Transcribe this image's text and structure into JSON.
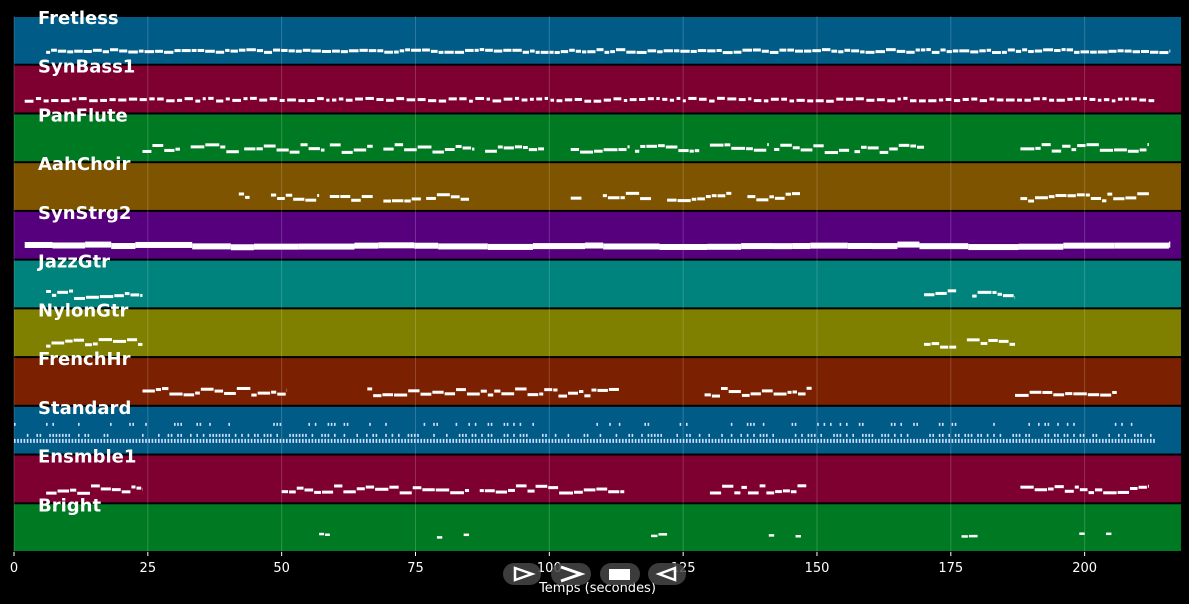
{
  "chart_data": {
    "type": "piano-roll",
    "xlabel": "Temps (secondes)",
    "xlim": [
      0,
      218
    ],
    "xticks": [
      0,
      25,
      50,
      75,
      100,
      125,
      150,
      175,
      200
    ],
    "grid": true,
    "tracks": [
      {
        "name": "Fretless",
        "color": "#005c87",
        "segments": [
          [
            6,
            216
          ]
        ],
        "style": "dense",
        "thickness": 3
      },
      {
        "name": "SynBass1",
        "color": "#7e0030",
        "segments": [
          [
            2,
            213
          ]
        ],
        "style": "dashed",
        "thickness": 3
      },
      {
        "name": "PanFlute",
        "color": "#007a22",
        "segments": [
          [
            24,
            31
          ],
          [
            33,
            42
          ],
          [
            43,
            58
          ],
          [
            59,
            67
          ],
          [
            69,
            86
          ],
          [
            88,
            99
          ],
          [
            104,
            115
          ],
          [
            116,
            128
          ],
          [
            130,
            141
          ],
          [
            142,
            156
          ],
          [
            157,
            170
          ],
          [
            188,
            212
          ]
        ],
        "style": "melody",
        "thickness": 3
      },
      {
        "name": "AahChoir",
        "color": "#7f5400",
        "segments": [
          [
            42,
            44
          ],
          [
            48,
            57
          ],
          [
            59,
            67
          ],
          [
            69,
            76
          ],
          [
            77,
            85
          ],
          [
            104,
            106
          ],
          [
            110,
            119
          ],
          [
            122,
            134
          ],
          [
            137,
            147
          ],
          [
            188,
            212
          ]
        ],
        "style": "melody",
        "thickness": 3
      },
      {
        "name": "SynStrg2",
        "color": "#56007e",
        "segments": [
          [
            2,
            216
          ]
        ],
        "style": "solid",
        "thickness": 6
      },
      {
        "name": "JazzGtr",
        "color": "#00827d",
        "segments": [
          [
            6,
            24
          ],
          [
            170,
            176
          ],
          [
            179,
            187
          ]
        ],
        "style": "melody",
        "thickness": 3
      },
      {
        "name": "NylonGtr",
        "color": "#7f7f00",
        "segments": [
          [
            6,
            24
          ],
          [
            170,
            176
          ],
          [
            178,
            187
          ]
        ],
        "style": "melody",
        "thickness": 3
      },
      {
        "name": "FrenchHr",
        "color": "#7b2000",
        "segments": [
          [
            24,
            51
          ],
          [
            66,
            113
          ],
          [
            129,
            149
          ],
          [
            187,
            206
          ]
        ],
        "style": "melody",
        "thickness": 3
      },
      {
        "name": "Standard",
        "color": "#005c87",
        "segments": [
          [
            0,
            213
          ]
        ],
        "style": "drums",
        "thickness": 2
      },
      {
        "name": "Ensmble1",
        "color": "#7e0030",
        "segments": [
          [
            6,
            24
          ],
          [
            50,
            85
          ],
          [
            87,
            114
          ],
          [
            130,
            148
          ],
          [
            188,
            212
          ]
        ],
        "style": "melody",
        "thickness": 3
      },
      {
        "name": "Bright",
        "color": "#007a22",
        "segments": [
          [
            57,
            59
          ],
          [
            79,
            80
          ],
          [
            84,
            85
          ],
          [
            119,
            122
          ],
          [
            141,
            142
          ],
          [
            146,
            147
          ],
          [
            177,
            180
          ],
          [
            199,
            200
          ],
          [
            204,
            205
          ]
        ],
        "style": "sparse",
        "thickness": 3
      }
    ]
  },
  "playback": {
    "buttons": [
      {
        "name": "play-button",
        "icon": "play-outline-icon"
      },
      {
        "name": "forward-button",
        "icon": "fast-forward-icon"
      },
      {
        "name": "stop-button",
        "icon": "stop-icon"
      },
      {
        "name": "rewind-button",
        "icon": "rewind-icon"
      }
    ]
  }
}
